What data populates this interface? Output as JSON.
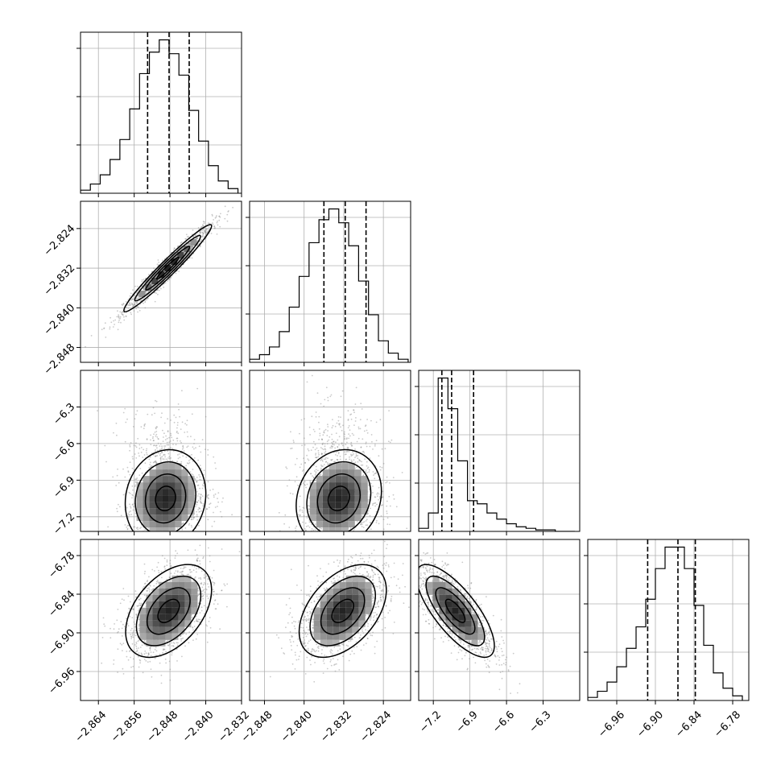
{
  "chart_data": {
    "type": "corner",
    "grid": true,
    "colors": {
      "contour": "#000000",
      "points": "#888888",
      "quantile": "#000000"
    },
    "parameters": [
      {
        "index": 0,
        "range": [
          -2.868,
          -2.832
        ],
        "ticks": [
          "−2.864",
          "−2.856",
          "−2.848",
          "−2.840",
          "−2.832"
        ],
        "tick_values": [
          -2.864,
          -2.856,
          -2.848,
          -2.84,
          -2.832
        ],
        "quantiles": [
          -2.853,
          -2.8482,
          -2.8437
        ],
        "histogram": {
          "edges": [
            -2.868,
            -2.8658,
            -2.8636,
            -2.8614,
            -2.8592,
            -2.857,
            -2.8548,
            -2.8526,
            -2.8504,
            -2.8482,
            -2.846,
            -2.8438,
            -2.8416,
            -2.8394,
            -2.8372,
            -2.835,
            -2.8328
          ],
          "counts": [
            2,
            6,
            12,
            22,
            35,
            55,
            78,
            92,
            100,
            91,
            77,
            54,
            34,
            18,
            8,
            3
          ]
        }
      },
      {
        "index": 1,
        "range": [
          -2.851,
          -2.8185
        ],
        "ticks": [
          "−2.848",
          "−2.840",
          "−2.832",
          "−2.824"
        ],
        "tick_values": [
          -2.848,
          -2.84,
          -2.832,
          -2.824
        ],
        "quantiles": [
          -2.836,
          -2.8317,
          -2.8275
        ],
        "histogram": {
          "edges": [
            -2.851,
            -2.849,
            -2.847,
            -2.845,
            -2.843,
            -2.841,
            -2.839,
            -2.837,
            -2.835,
            -2.833,
            -2.831,
            -2.829,
            -2.827,
            -2.825,
            -2.823,
            -2.821,
            -2.819
          ],
          "counts": [
            2,
            5,
            10,
            20,
            36,
            56,
            78,
            93,
            100,
            91,
            76,
            53,
            31,
            14,
            6,
            2
          ]
        }
      },
      {
        "index": 2,
        "range": [
          -7.32,
          -6.0
        ],
        "ticks": [
          "−7.2",
          "−6.9",
          "−6.6",
          "−6.3"
        ],
        "tick_values": [
          -7.2,
          -6.9,
          -6.6,
          -6.3
        ],
        "quantiles": [
          -7.13,
          -7.05,
          -6.87
        ],
        "histogram": {
          "edges": [
            -7.32,
            -7.24,
            -7.16,
            -7.08,
            -7.0,
            -6.92,
            -6.84,
            -6.76,
            -6.68,
            -6.6,
            -6.52,
            -6.44,
            -6.36,
            -6.28,
            -6.2,
            -6.12,
            -6.04
          ],
          "counts": [
            2,
            12,
            100,
            80,
            46,
            20,
            18,
            12,
            8,
            5,
            3,
            2,
            1,
            1,
            0,
            0
          ]
        }
      },
      {
        "index": 3,
        "range": [
          -7.005,
          -6.755
        ],
        "ticks": [
          "−6.96",
          "−6.90",
          "−6.84",
          "−6.78"
        ],
        "tick_values": [
          -6.96,
          -6.9,
          -6.84,
          -6.78
        ],
        "quantiles": [
          -6.912,
          -6.865,
          -6.838
        ],
        "histogram": {
          "edges": [
            -7.005,
            -6.99,
            -6.975,
            -6.96,
            -6.945,
            -6.93,
            -6.915,
            -6.9,
            -6.885,
            -6.87,
            -6.855,
            -6.84,
            -6.825,
            -6.81,
            -6.795,
            -6.78,
            -6.765
          ],
          "counts": [
            2,
            6,
            12,
            22,
            34,
            48,
            66,
            86,
            100,
            100,
            86,
            62,
            36,
            18,
            8,
            3
          ]
        }
      }
    ],
    "pairs": [
      {
        "x": 0,
        "y": 1,
        "center": [
          -2.8485,
          -2.832
        ],
        "sd": [
          0.0049,
          0.0044
        ],
        "corr": 0.97
      },
      {
        "x": 0,
        "y": 2,
        "center": [
          -2.849,
          -7.05
        ],
        "sd": [
          0.0045,
          0.2
        ],
        "corr": 0.1
      },
      {
        "x": 1,
        "y": 2,
        "center": [
          -2.833,
          -7.05
        ],
        "sd": [
          0.0043,
          0.2
        ],
        "corr": 0.15
      },
      {
        "x": 0,
        "y": 3,
        "center": [
          -2.8483,
          -6.866
        ],
        "sd": [
          0.0048,
          0.036
        ],
        "corr": 0.45
      },
      {
        "x": 1,
        "y": 3,
        "center": [
          -2.8322,
          -6.866
        ],
        "sd": [
          0.0044,
          0.036
        ],
        "corr": 0.45
      },
      {
        "x": 2,
        "y": 3,
        "center": [
          -7.02,
          -6.866
        ],
        "sd": [
          0.16,
          0.036
        ],
        "corr": -0.75
      }
    ]
  }
}
